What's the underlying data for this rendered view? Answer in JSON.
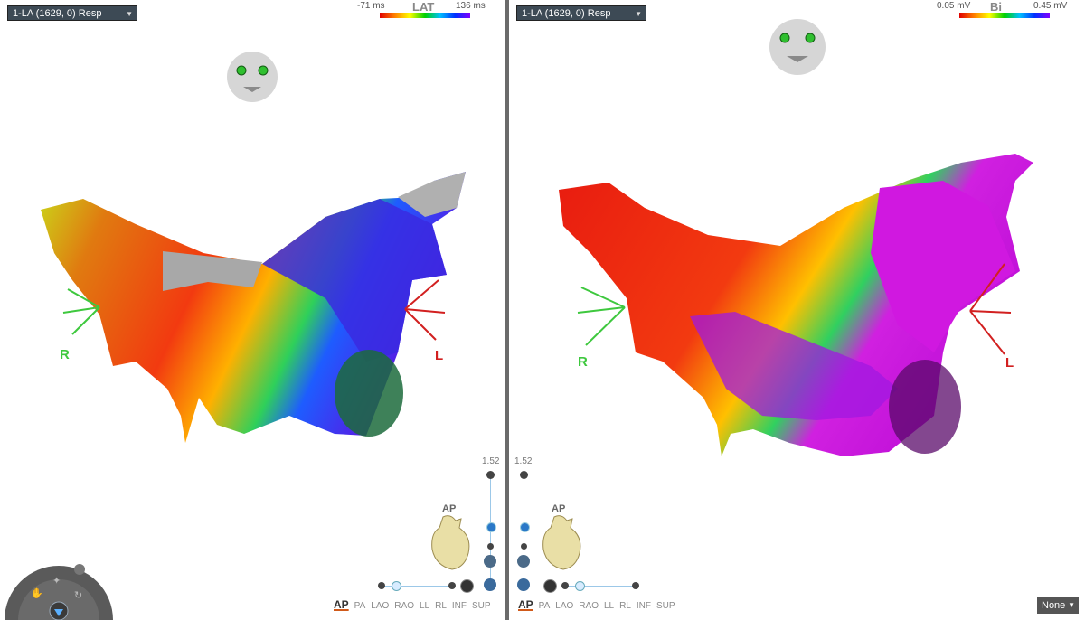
{
  "left": {
    "map_select": "1-LA (1629, 0) Resp",
    "legend": {
      "min": "-71 ms",
      "title": "LAT",
      "max": "136 ms"
    },
    "label_r": "R",
    "label_l": "L",
    "zoom_value": "1.52",
    "view_label": "AP"
  },
  "right": {
    "map_select": "1-LA (1629, 0) Resp",
    "legend": {
      "min": "0.05 mV",
      "title": "Bi",
      "max": "0.45 mV"
    },
    "label_r": "R",
    "label_l": "L",
    "zoom_value": "1.52",
    "view_label": "AP"
  },
  "view_tabs": [
    "AP",
    "PA",
    "LAO",
    "RAO",
    "LL",
    "RL",
    "INF",
    "SUP"
  ],
  "view_tabs_active": "AP",
  "none_select": "None",
  "colors": {
    "divider": "#6b6b6b",
    "select_bg": "#3d4a55",
    "label_r": "#3ec83e",
    "label_l": "#d22020"
  }
}
